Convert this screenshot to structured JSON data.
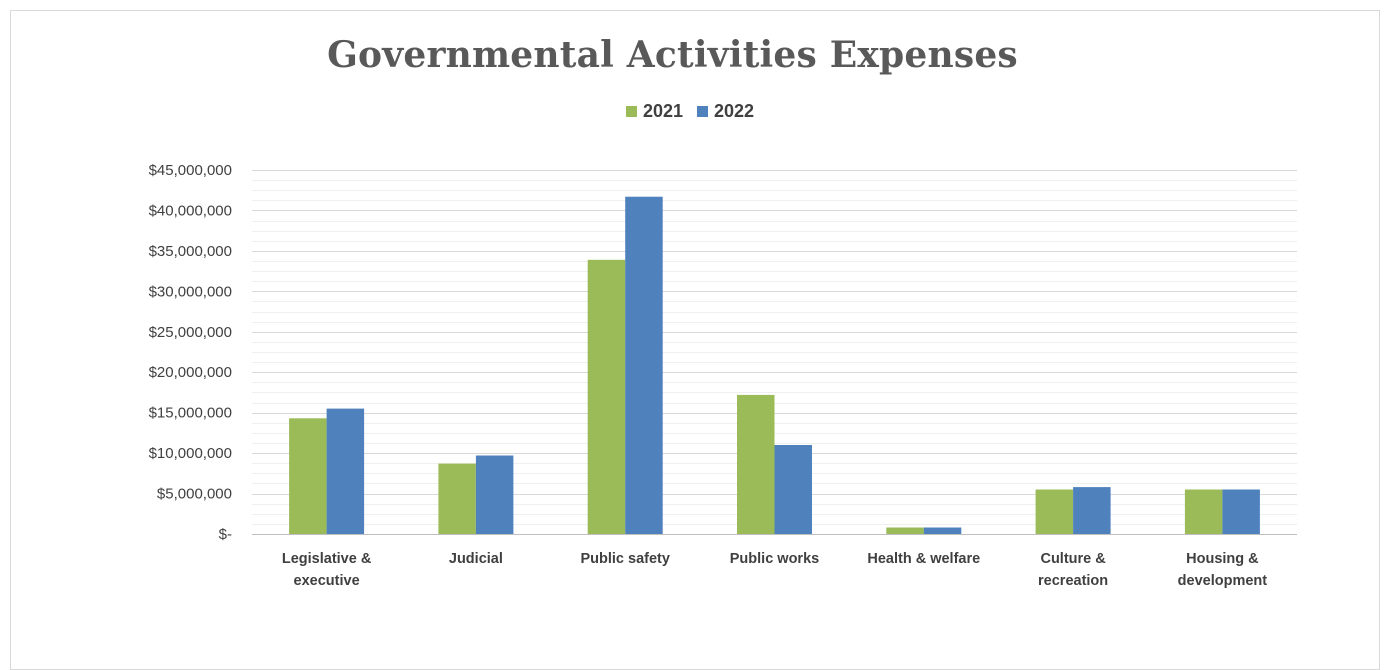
{
  "chart_data": {
    "type": "bar",
    "title": "Governmental Activities Expenses",
    "categories": [
      [
        "Legislative &",
        "executive"
      ],
      [
        "Judicial"
      ],
      [
        "Public safety"
      ],
      [
        "Public works"
      ],
      [
        "Health & welfare"
      ],
      [
        "Culture &",
        "recreation"
      ],
      [
        "Housing &",
        "development"
      ]
    ],
    "series": [
      {
        "name": "2021",
        "color": "#9bbb59",
        "values": [
          14300000,
          8700000,
          33900000,
          17200000,
          800000,
          5500000,
          5500000
        ]
      },
      {
        "name": "2022",
        "color": "#4f81bd",
        "values": [
          15500000,
          9700000,
          41700000,
          11000000,
          800000,
          5800000,
          5500000
        ]
      }
    ],
    "yticks": [
      "$-",
      "$5,000,000",
      "$10,000,000",
      "$15,000,000",
      "$20,000,000",
      "$25,000,000",
      "$30,000,000",
      "$35,000,000",
      "$40,000,000",
      "$45,000,000"
    ],
    "ylim": [
      0,
      45000000
    ],
    "xlabel": "",
    "ylabel": "",
    "grid": true,
    "legend_position": "top"
  }
}
